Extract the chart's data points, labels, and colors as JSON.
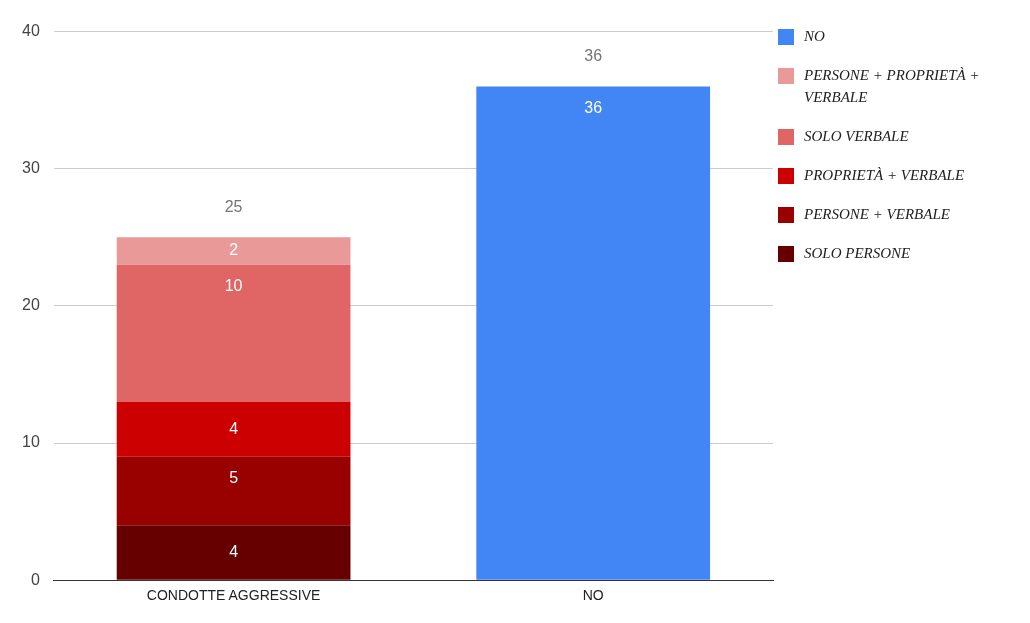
{
  "chart_data": {
    "type": "bar",
    "stacked": true,
    "categories": [
      "CONDOTTE AGGRESSIVE",
      "NO"
    ],
    "series": [
      {
        "name": "SOLO PERSONE",
        "color": "#660000",
        "values": [
          4,
          null
        ]
      },
      {
        "name": "PERSONE + VERBALE",
        "color": "#990000",
        "values": [
          5,
          null
        ]
      },
      {
        "name": "PROPRIETÀ + VERBALE",
        "color": "#cc0000",
        "values": [
          4,
          null
        ]
      },
      {
        "name": "SOLO VERBALE",
        "color": "#e06666",
        "values": [
          10,
          null
        ]
      },
      {
        "name": "PERSONE + PROPRIETÀ + VERBALE",
        "color": "#ea9999",
        "values": [
          2,
          null
        ]
      },
      {
        "name": "NO",
        "color": "#4285f4",
        "values": [
          null,
          36
        ]
      }
    ],
    "ylim": [
      0,
      40
    ],
    "yticks": [
      0,
      10,
      20,
      30,
      40
    ],
    "grid": "y",
    "legend": "right",
    "data_labels": true,
    "totals": [
      "25",
      "36"
    ]
  }
}
